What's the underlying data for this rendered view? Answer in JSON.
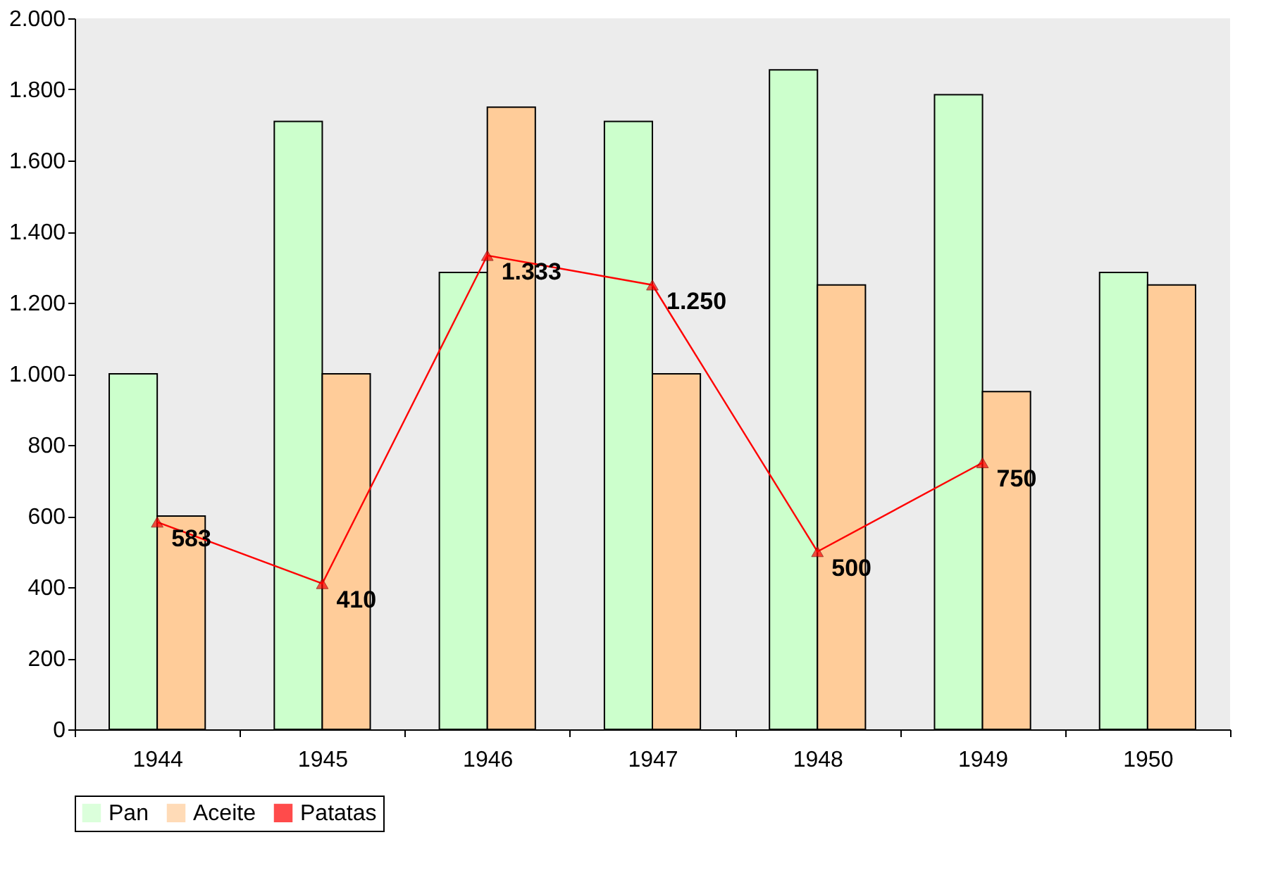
{
  "chart_data": {
    "type": "bar",
    "categories": [
      "1944",
      "1945",
      "1946",
      "1947",
      "1948",
      "1949",
      "1950"
    ],
    "series": [
      {
        "name": "Pan",
        "color": "#ccffcc",
        "values": [
          1000,
          1710,
          1285,
          1710,
          1855,
          1785,
          1285
        ]
      },
      {
        "name": "Aceite",
        "color": "#ffcc99",
        "values": [
          600,
          1000,
          1750,
          1000,
          1250,
          950,
          1250
        ]
      },
      {
        "name": "Patatas",
        "type": "line",
        "color": "#ff0000",
        "values": [
          583,
          410,
          1333,
          1250,
          500,
          750,
          null
        ],
        "value_labels": [
          "583",
          "410",
          "1.333",
          "1.250",
          "500",
          "750",
          null
        ]
      }
    ],
    "ylim": [
      0,
      2000
    ],
    "yticks": [
      0,
      {
        "value": 200,
        "label": "200"
      },
      {
        "value": 400,
        "label": "400"
      },
      {
        "value": 600,
        "label": "600"
      },
      {
        "value": 800,
        "label": "800"
      },
      {
        "value": 1000,
        "label": "1.000"
      },
      {
        "value": 1200,
        "label": "1.200"
      },
      {
        "value": 1400,
        "label": "1.400"
      },
      {
        "value": 1600,
        "label": "1.600"
      },
      {
        "value": 1800,
        "label": "1.800"
      },
      {
        "value": 2000,
        "label": "2.000"
      }
    ],
    "legend": "bottom",
    "marker": "triangle"
  }
}
